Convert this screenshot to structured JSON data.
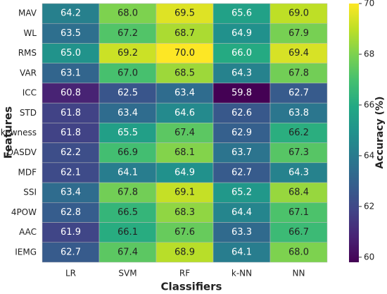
{
  "chart_data": {
    "type": "heatmap",
    "xlabel": "Classifiers",
    "ylabel": "Features",
    "colorbar_label": "Accuracy (%)",
    "x_categories": [
      "LR",
      "SVM",
      "RF",
      "k-NN",
      "NN"
    ],
    "y_categories": [
      "MAV",
      "WL",
      "RMS",
      "VAR",
      "ICC",
      "STD",
      "Skewness",
      "DASDV",
      "MDF",
      "SSI",
      "4POW",
      "AAC",
      "IEMG"
    ],
    "values": [
      [
        64.2,
        68.0,
        69.5,
        65.6,
        69.0
      ],
      [
        63.5,
        67.2,
        68.7,
        64.9,
        67.9
      ],
      [
        65.0,
        69.2,
        70.0,
        66.0,
        69.4
      ],
      [
        63.1,
        67.0,
        68.5,
        64.3,
        67.8
      ],
      [
        60.8,
        62.5,
        63.4,
        59.8,
        62.7
      ],
      [
        61.8,
        63.4,
        64.6,
        62.6,
        63.8
      ],
      [
        61.8,
        65.5,
        67.4,
        62.9,
        66.2
      ],
      [
        62.2,
        66.9,
        68.1,
        63.7,
        67.3
      ],
      [
        62.1,
        64.1,
        64.9,
        62.7,
        64.3
      ],
      [
        63.4,
        67.8,
        69.1,
        65.2,
        68.4
      ],
      [
        62.8,
        66.5,
        68.3,
        64.4,
        67.1
      ],
      [
        61.9,
        66.1,
        67.6,
        63.3,
        66.7
      ],
      [
        62.7,
        67.4,
        68.9,
        64.1,
        68.0
      ]
    ],
    "value_labels": [
      [
        "64.2",
        "68.0",
        "69.5",
        "65.6",
        "69.0"
      ],
      [
        "63.5",
        "67.2",
        "68.7",
        "64.9",
        "67.9"
      ],
      [
        "65.0",
        "69.2",
        "70.0",
        "66.0",
        "69.4"
      ],
      [
        "63.1",
        "67.0",
        "68.5",
        "64.3",
        "67.8"
      ],
      [
        "60.8",
        "62.5",
        "63.4",
        "59.8",
        "62.7"
      ],
      [
        "61.8",
        "63.4",
        "64.6",
        "62.6",
        "63.8"
      ],
      [
        "61.8",
        "65.5",
        "67.4",
        "62.9",
        "66.2"
      ],
      [
        "62.2",
        "66.9",
        "68.1",
        "63.7",
        "67.3"
      ],
      [
        "62.1",
        "64.1",
        "64.9",
        "62.7",
        "64.3"
      ],
      [
        "63.4",
        "67.8",
        "69.1",
        "65.2",
        "68.4"
      ],
      [
        "62.8",
        "66.5",
        "68.3",
        "64.4",
        "67.1"
      ],
      [
        "61.9",
        "66.1",
        "67.6",
        "63.3",
        "66.7"
      ],
      [
        "62.7",
        "67.4",
        "68.9",
        "64.1",
        "68.0"
      ]
    ],
    "colormap": "viridis",
    "zlim": [
      59.8,
      70
    ],
    "zticks": [
      60,
      62,
      64,
      66,
      68,
      70
    ]
  }
}
